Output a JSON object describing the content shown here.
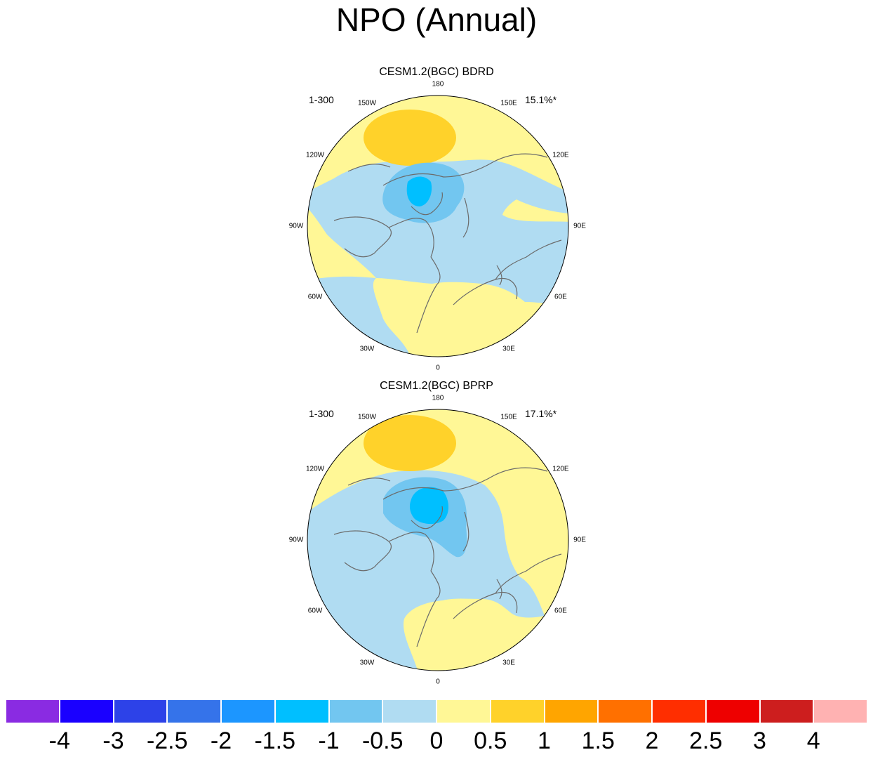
{
  "title": "NPO (Annual)",
  "panels": [
    {
      "title": "CESM1.2(BGC) BDRD",
      "left_label": "1-300",
      "right_label": "15.1%*"
    },
    {
      "title": "CESM1.2(BGC) BPRP",
      "left_label": "1-300",
      "right_label": "17.1%*"
    }
  ],
  "longitude_labels": [
    "180",
    "150E",
    "120E",
    "90E",
    "60E",
    "30E",
    "0",
    "30W",
    "60W",
    "90W",
    "120W",
    "150W"
  ],
  "colorbar": {
    "labels": [
      "-4",
      "-3",
      "-2.5",
      "-2",
      "-1.5",
      "-1",
      "-0.5",
      "0",
      "0.5",
      "1",
      "1.5",
      "2",
      "2.5",
      "3",
      "4"
    ],
    "colors": [
      "#8a2be2",
      "#1a00ff",
      "#2d42e8",
      "#3573ea",
      "#1c96ff",
      "#00bfff",
      "#72c6f0",
      "#b0dcf2",
      "#fff796",
      "#ffd22a",
      "#ffa500",
      "#ff7000",
      "#ff2e00",
      "#ee0000",
      "#cd1e1e",
      "#ffb2b2"
    ]
  },
  "colors": {
    "background": "#ffffff",
    "coastline": "#6b6b6b"
  }
}
